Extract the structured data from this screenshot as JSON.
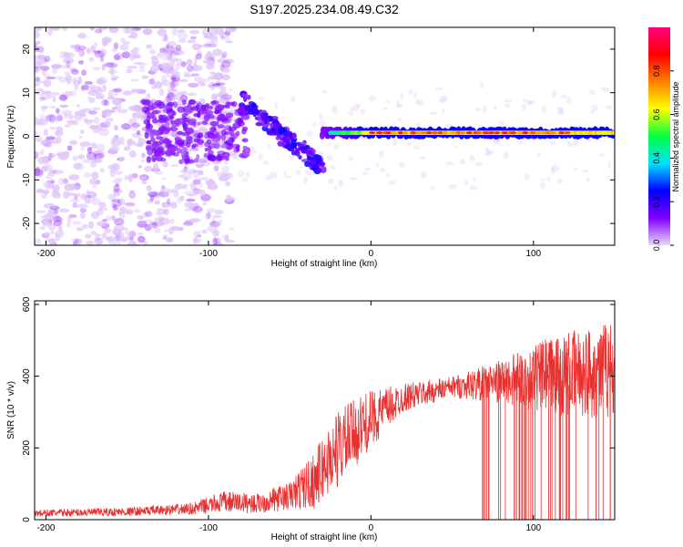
{
  "title": "S197.2025.234.08.49.C32",
  "chart_data": [
    {
      "type": "heatmap",
      "name": "spectrogram",
      "xlabel": "Height of straight line (km)",
      "ylabel": "Frequency (Hz)",
      "xlim": [
        -207,
        150
      ],
      "ylim": [
        -25,
        25
      ],
      "xticks": [
        -200,
        -100,
        0,
        100
      ],
      "yticks": [
        -20,
        -10,
        0,
        10,
        20
      ],
      "colorbar": {
        "label": "Normalized spectral amplitude",
        "range": [
          0,
          1
        ],
        "ticks": [
          "0.0",
          "0.2",
          "0.4",
          "0.6",
          "0.8"
        ],
        "tick_values": [
          0.0,
          0.2,
          0.4,
          0.6,
          0.8
        ],
        "colors": [
          "#e8d8f8",
          "#8000ff",
          "#0000ff",
          "#00e0ff",
          "#00ff40",
          "#ffff00",
          "#ff8000",
          "#ff0000",
          "#ff0080"
        ]
      },
      "features": {
        "noise_region_x": [
          -207,
          -95
        ],
        "diagonal_segment": {
          "x": [
            -80,
            -30
          ],
          "y": [
            8,
            -7
          ]
        },
        "carrier_line": {
          "x": [
            -30,
            150
          ],
          "y_hz": 0.8
        },
        "peak_segment_x": [
          0,
          120
        ]
      }
    },
    {
      "type": "line",
      "name": "snr",
      "xlabel": "Height of straight line (km)",
      "ylabel": "SNR (10 * v/v)",
      "xlim": [
        -207,
        150
      ],
      "ylim": [
        0,
        610
      ],
      "xticks": [
        -200,
        -100,
        0,
        100
      ],
      "yticks": [
        0,
        200,
        400,
        600
      ],
      "color": "#e83030",
      "profile": [
        {
          "x": -207,
          "mean": 18,
          "spread": 10
        },
        {
          "x": -150,
          "mean": 22,
          "spread": 12
        },
        {
          "x": -110,
          "mean": 30,
          "spread": 16
        },
        {
          "x": -90,
          "mean": 50,
          "spread": 30
        },
        {
          "x": -70,
          "mean": 45,
          "spread": 28
        },
        {
          "x": -50,
          "mean": 65,
          "spread": 40
        },
        {
          "x": -35,
          "mean": 110,
          "spread": 80
        },
        {
          "x": -20,
          "mean": 200,
          "spread": 110
        },
        {
          "x": 0,
          "mean": 280,
          "spread": 80
        },
        {
          "x": 20,
          "mean": 340,
          "spread": 40
        },
        {
          "x": 50,
          "mean": 370,
          "spread": 30
        },
        {
          "x": 80,
          "mean": 385,
          "spread": 60
        },
        {
          "x": 110,
          "mean": 400,
          "spread": 110
        },
        {
          "x": 150,
          "mean": 420,
          "spread": 140
        }
      ]
    }
  ]
}
